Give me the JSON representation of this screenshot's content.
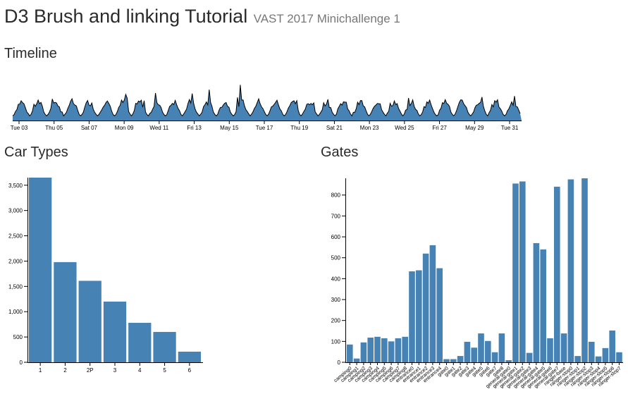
{
  "page": {
    "title": "D3 Brush and linking Tutorial",
    "subtitle": "VAST 2017 Minichallenge 1",
    "timeline_heading": "Timeline",
    "car_types_heading": "Car Types",
    "gates_heading": "Gates"
  },
  "colors": {
    "bar": "#4682b4",
    "area": "#4682b4",
    "line": "#000000"
  },
  "chart_data": [
    {
      "type": "area",
      "ticks": [
        "Tue 03",
        "Thu 05",
        "Sat 07",
        "Mon 09",
        "Wed 11",
        "Fri 13",
        "May 15",
        "Tue 17",
        "Thu 19",
        "Sat 21",
        "Mon 23",
        "Wed 25",
        "Fri 27",
        "May 29",
        "Tue 31"
      ]
    },
    {
      "type": "bar",
      "categories": [
        "1",
        "2",
        "2P",
        "3",
        "4",
        "5",
        "6"
      ],
      "values": [
        3650,
        1980,
        1610,
        1200,
        780,
        600,
        210
      ],
      "ylim": [
        0,
        3650
      ],
      "yticks": [
        0,
        500,
        1000,
        1500,
        2000,
        2500,
        3000,
        3500
      ],
      "ytick_labels": [
        "0",
        "500",
        "1,000",
        "1,500",
        "2,000",
        "2,500",
        "3,000",
        "3,500"
      ]
    },
    {
      "type": "bar",
      "categories": [
        "camping0",
        "camping1",
        "camping2",
        "camping3",
        "camping4",
        "camping5",
        "camping6",
        "camping7",
        "camping8",
        "entrance0",
        "entrance1",
        "entrance2",
        "entrance3",
        "entrance4",
        "gate0",
        "gate1",
        "gate2",
        "gate3",
        "gate4",
        "gate5",
        "gate6",
        "gate7",
        "gate8",
        "general-gate0",
        "general-gate1",
        "general-gate2",
        "general-gate3",
        "general-gate4",
        "general-gate5",
        "general-gate6",
        "general-gate7",
        "ranger-base",
        "ranger-stop0",
        "ranger-stop1",
        "ranger-stop2",
        "ranger-stop3",
        "ranger-stop4",
        "ranger-stop5",
        "ranger-stop6",
        "ranger-stop7"
      ],
      "values": [
        85,
        18,
        95,
        118,
        122,
        115,
        100,
        115,
        122,
        435,
        440,
        520,
        560,
        450,
        15,
        15,
        30,
        98,
        70,
        138,
        102,
        48,
        138,
        10,
        855,
        865,
        45,
        570,
        540,
        115,
        840,
        138,
        875,
        30,
        880,
        98,
        28,
        68,
        152,
        48
      ],
      "ylim": [
        0,
        880
      ],
      "yticks": [
        0,
        100,
        200,
        300,
        400,
        500,
        600,
        700,
        800
      ]
    }
  ]
}
